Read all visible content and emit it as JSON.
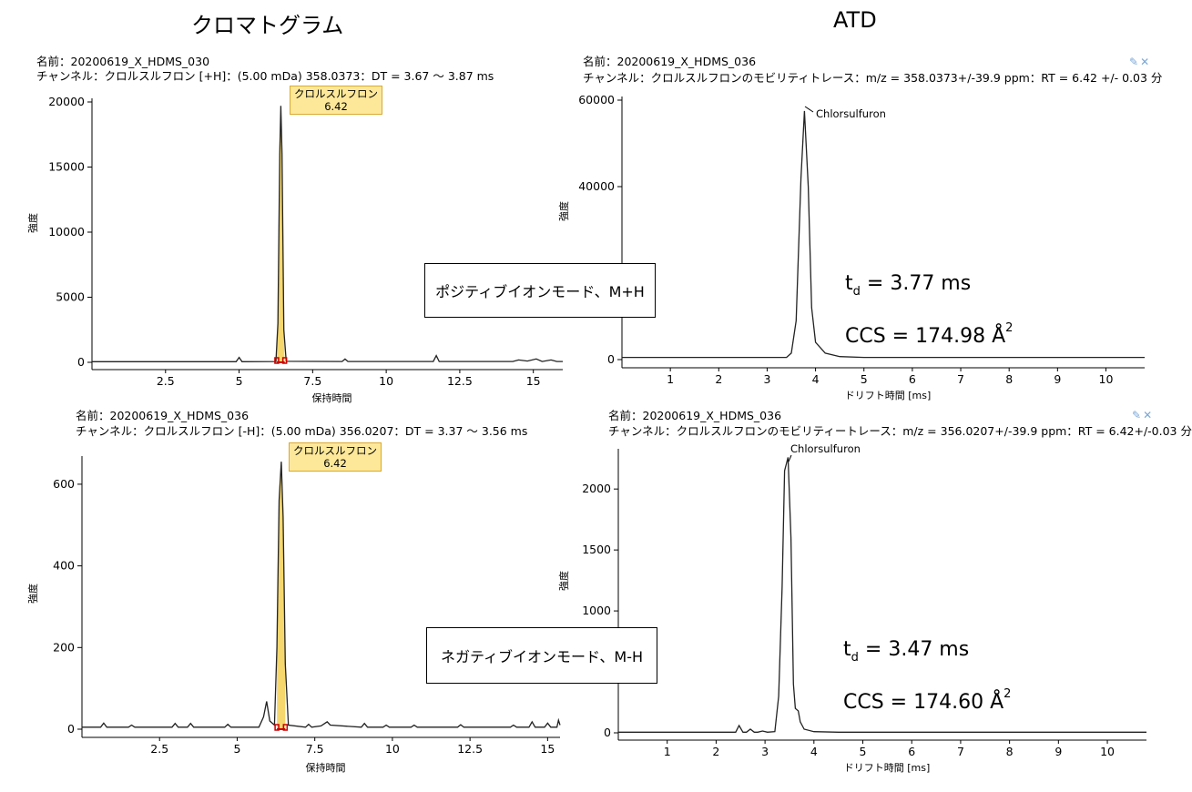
{
  "headers": {
    "left": "クロマトグラム",
    "right": "ATD"
  },
  "ion_modes": {
    "positive": "ポジティブイオンモード、M+H",
    "negative": "ネガティブイオンモード、M-H"
  },
  "tool_icons": [
    "pin-icon",
    "close-icon"
  ],
  "panels": {
    "chrom_pos": {
      "name": "名前：20200619_X_HDMS_030",
      "channel": "チャンネル：クロルスルフロン [+H]：(5.00 mDa) 358.0373：DT = 3.67 ～ 3.87 ms",
      "peak_label": {
        "name": "クロルスルフロン",
        "rt": "6.42"
      }
    },
    "atd_pos": {
      "name": "名前：20200619_X_HDMS_036",
      "channel": "チャンネル：クロルスルフロンのモビリティトレース：m/z = 358.0373+/-39.9 ppm：RT = 6.42 +/- 0.03 分",
      "peak_name": "Chlorsulfuron",
      "td_value": " = 3.77 ms",
      "ccs_value": "CCS = 174.98 Å",
      "td_symbol": "t",
      "td_sub": "d",
      "sup": "2"
    },
    "chrom_neg": {
      "name": "名前：20200619_X_HDMS_036",
      "channel": "チャンネル：クロルスルフロン [-H]：(5.00 mDa) 356.0207：DT = 3.37 ～ 3.56 ms",
      "peak_label": {
        "name": "クロルスルフロン",
        "rt": "6.42"
      }
    },
    "atd_neg": {
      "name": "名前：20200619_X_HDMS_036",
      "channel": "チャンネル：クロルスルフロンのモビリティートレース：m/z = 356.0207+/-39.9 ppm：RT = 6.42+/-0.03 分",
      "peak_name": "Chlorsulfuron",
      "td_value": " = 3.47 ms",
      "ccs_value": "CCS = 174.60 Å",
      "td_symbol": "t",
      "td_sub": "d",
      "sup": "2"
    }
  },
  "chart_data": [
    {
      "id": "chrom_pos",
      "type": "line",
      "xlabel": "保持時間",
      "ylabel": "強度",
      "xlim": [
        0,
        16
      ],
      "ylim": [
        0,
        20000
      ],
      "xticks": [
        2.5,
        5,
        7.5,
        10,
        12.5,
        15
      ],
      "xtick_labels": [
        "2.5",
        "5",
        "7.5",
        "10",
        "12.5",
        "15"
      ],
      "yticks": [
        0,
        5000,
        10000,
        15000,
        20000
      ],
      "ytick_labels": [
        "0",
        "5000",
        "10000",
        "15000",
        "20000"
      ],
      "series": [
        {
          "values_xy": [
            [
              0,
              50
            ],
            [
              4.9,
              50
            ],
            [
              5.0,
              380
            ],
            [
              5.1,
              50
            ],
            [
              6.25,
              60
            ],
            [
              6.32,
              3000
            ],
            [
              6.38,
              16000
            ],
            [
              6.42,
              19700
            ],
            [
              6.46,
              16000
            ],
            [
              6.52,
              2500
            ],
            [
              6.6,
              80
            ],
            [
              8.5,
              60
            ],
            [
              8.6,
              250
            ],
            [
              8.7,
              60
            ],
            [
              11.6,
              60
            ],
            [
              11.7,
              520
            ],
            [
              11.8,
              60
            ],
            [
              14.3,
              60
            ],
            [
              14.5,
              180
            ],
            [
              14.8,
              100
            ],
            [
              15.1,
              260
            ],
            [
              15.3,
              60
            ],
            [
              15.6,
              180
            ],
            [
              15.8,
              60
            ],
            [
              16,
              60
            ]
          ]
        }
      ]
    },
    {
      "id": "atd_pos",
      "type": "line",
      "xlabel": "ドリフト時間 [ms]",
      "ylabel": "強度",
      "xlim": [
        0,
        10.8
      ],
      "ylim": [
        0,
        60000
      ],
      "xticks": [
        1,
        2,
        3,
        4,
        5,
        6,
        7,
        8,
        9,
        10
      ],
      "xtick_labels": [
        "1",
        "2",
        "3",
        "4",
        "5",
        "6",
        "7",
        "8",
        "9",
        "10"
      ],
      "yticks": [
        0,
        20000,
        40000,
        60000
      ],
      "ytick_labels": [
        "0",
        "",
        "40000",
        "60000"
      ],
      "series": [
        {
          "values_xy": [
            [
              0,
              500
            ],
            [
              3.4,
              500
            ],
            [
              3.5,
              1500
            ],
            [
              3.6,
              9000
            ],
            [
              3.7,
              42000
            ],
            [
              3.77,
              57500
            ],
            [
              3.85,
              40000
            ],
            [
              3.92,
              12000
            ],
            [
              4.0,
              4000
            ],
            [
              4.2,
              1500
            ],
            [
              4.5,
              700
            ],
            [
              5,
              500
            ],
            [
              10.8,
              500
            ]
          ]
        }
      ]
    },
    {
      "id": "chrom_neg",
      "type": "line",
      "xlabel": "保持時間",
      "ylabel": "強度",
      "xlim": [
        0,
        15.4
      ],
      "ylim": [
        0,
        660
      ],
      "xticks": [
        2.5,
        5,
        7.5,
        10,
        12.5,
        15
      ],
      "xtick_labels": [
        "2.5",
        "5",
        "7.5",
        "10",
        "12.5",
        "15"
      ],
      "yticks": [
        0,
        200,
        400,
        600
      ],
      "ytick_labels": [
        "0",
        "200",
        "400",
        "600"
      ],
      "series": [
        {
          "values_xy": [
            [
              0,
              5
            ],
            [
              0.6,
              5
            ],
            [
              0.7,
              15
            ],
            [
              0.8,
              5
            ],
            [
              1.5,
              5
            ],
            [
              1.6,
              10
            ],
            [
              1.7,
              5
            ],
            [
              2.9,
              5
            ],
            [
              3.0,
              14
            ],
            [
              3.1,
              5
            ],
            [
              3.4,
              5
            ],
            [
              3.5,
              14
            ],
            [
              3.6,
              5
            ],
            [
              4.6,
              5
            ],
            [
              4.7,
              12
            ],
            [
              4.8,
              5
            ],
            [
              5.7,
              5
            ],
            [
              5.85,
              30
            ],
            [
              5.95,
              68
            ],
            [
              6.05,
              20
            ],
            [
              6.2,
              10
            ],
            [
              6.28,
              200
            ],
            [
              6.35,
              560
            ],
            [
              6.42,
              655
            ],
            [
              6.48,
              520
            ],
            [
              6.55,
              160
            ],
            [
              6.65,
              10
            ],
            [
              7.2,
              5
            ],
            [
              7.3,
              12
            ],
            [
              7.4,
              5
            ],
            [
              7.7,
              8
            ],
            [
              7.9,
              18
            ],
            [
              8.0,
              10
            ],
            [
              9.0,
              5
            ],
            [
              9.1,
              14
            ],
            [
              9.2,
              5
            ],
            [
              9.7,
              5
            ],
            [
              9.8,
              10
            ],
            [
              9.9,
              5
            ],
            [
              10.6,
              5
            ],
            [
              10.7,
              10
            ],
            [
              10.8,
              5
            ],
            [
              12.1,
              5
            ],
            [
              12.2,
              11
            ],
            [
              12.3,
              5
            ],
            [
              13.8,
              5
            ],
            [
              13.9,
              10
            ],
            [
              14.0,
              5
            ],
            [
              14.4,
              5
            ],
            [
              14.5,
              18
            ],
            [
              14.6,
              5
            ],
            [
              14.9,
              5
            ],
            [
              15.0,
              15
            ],
            [
              15.1,
              5
            ],
            [
              15.3,
              5
            ],
            [
              15.35,
              22
            ],
            [
              15.4,
              10
            ]
          ]
        }
      ]
    },
    {
      "id": "atd_neg",
      "type": "line",
      "xlabel": "ドリフト時間 [ms]",
      "ylabel": "強度",
      "xlim": [
        0,
        10.8
      ],
      "ylim": [
        0,
        2300
      ],
      "xticks": [
        1,
        2,
        3,
        4,
        5,
        6,
        7,
        8,
        9,
        10
      ],
      "xtick_labels": [
        "1",
        "2",
        "3",
        "4",
        "5",
        "6",
        "7",
        "8",
        "9",
        "10"
      ],
      "yticks": [
        0,
        500,
        1000,
        1500,
        2000
      ],
      "ytick_labels": [
        "0",
        "",
        "1000",
        "1500",
        "2000"
      ],
      "series": [
        {
          "values_xy": [
            [
              0,
              5
            ],
            [
              2.4,
              5
            ],
            [
              2.47,
              60
            ],
            [
              2.55,
              5
            ],
            [
              2.62,
              5
            ],
            [
              2.7,
              30
            ],
            [
              2.78,
              5
            ],
            [
              2.85,
              5
            ],
            [
              2.95,
              15
            ],
            [
              3.05,
              5
            ],
            [
              3.2,
              10
            ],
            [
              3.28,
              300
            ],
            [
              3.35,
              1200
            ],
            [
              3.4,
              2150
            ],
            [
              3.47,
              2260
            ],
            [
              3.53,
              1600
            ],
            [
              3.58,
              400
            ],
            [
              3.62,
              200
            ],
            [
              3.68,
              180
            ],
            [
              3.72,
              90
            ],
            [
              3.8,
              30
            ],
            [
              4.0,
              10
            ],
            [
              4.5,
              5
            ],
            [
              10.8,
              5
            ]
          ]
        }
      ]
    }
  ]
}
